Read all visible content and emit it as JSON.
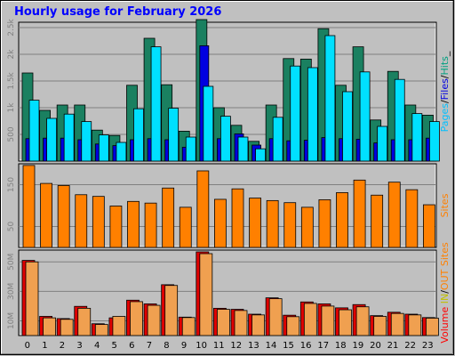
{
  "title": "Hourly usage for February 2026",
  "chart_data": [
    {
      "type": "bar",
      "panel": "hits-files-pages",
      "categories": [
        "0",
        "1",
        "2",
        "3",
        "4",
        "5",
        "6",
        "7",
        "8",
        "9",
        "10",
        "11",
        "12",
        "13",
        "14",
        "15",
        "16",
        "17",
        "18",
        "19",
        "20",
        "21",
        "22",
        "23"
      ],
      "ylim": [
        0,
        2600
      ],
      "yticks": [
        "500",
        "1k",
        "1.5k",
        "2k",
        "2.5k"
      ],
      "yticks_values": [
        500,
        1000,
        1500,
        2000,
        2500
      ],
      "side_label": [
        "Pages",
        "/",
        "Files",
        "/",
        "Hits",
        "_"
      ],
      "side_label_colors": [
        "#00c0ff",
        "#000000",
        "#0000e0",
        "#000000",
        "#00a080",
        "#000000"
      ],
      "series": [
        {
          "name": "Hits",
          "color": "#1a8060",
          "values": [
            1650,
            950,
            1050,
            1050,
            580,
            480,
            1420,
            2300,
            1430,
            560,
            2650,
            1000,
            670,
            370,
            1050,
            1920,
            1910,
            2480,
            1420,
            2140,
            770,
            1680,
            1050,
            860
          ]
        },
        {
          "name": "Files",
          "color": "#0000e0",
          "values": [
            420,
            430,
            430,
            400,
            320,
            290,
            400,
            420,
            400,
            260,
            2160,
            420,
            510,
            300,
            420,
            380,
            390,
            440,
            420,
            410,
            340,
            400,
            400,
            430
          ]
        },
        {
          "name": "Pages",
          "color": "#00e0ff",
          "values": [
            1140,
            800,
            880,
            740,
            490,
            350,
            980,
            2140,
            990,
            450,
            1400,
            840,
            450,
            230,
            820,
            1780,
            1750,
            2350,
            1300,
            1670,
            650,
            1530,
            890,
            740
          ]
        }
      ]
    },
    {
      "type": "bar",
      "panel": "sites",
      "categories": [
        "0",
        "1",
        "2",
        "3",
        "4",
        "5",
        "6",
        "7",
        "8",
        "9",
        "10",
        "11",
        "12",
        "13",
        "14",
        "15",
        "16",
        "17",
        "18",
        "19",
        "20",
        "21",
        "22",
        "23"
      ],
      "ylim": [
        0,
        200
      ],
      "yticks": [
        "50",
        "150"
      ],
      "yticks_values": [
        50,
        150
      ],
      "side_label": [
        "Sites"
      ],
      "side_label_colors": [
        "#ff8000"
      ],
      "series": [
        {
          "name": "Sites",
          "color": "#ff8000",
          "values": [
            196,
            153,
            148,
            126,
            122,
            99,
            110,
            106,
            142,
            96,
            183,
            115,
            140,
            118,
            112,
            107,
            96,
            114,
            131,
            161,
            125,
            156,
            138,
            102
          ]
        }
      ]
    },
    {
      "type": "bar",
      "panel": "volume",
      "categories": [
        "0",
        "1",
        "2",
        "3",
        "4",
        "5",
        "6",
        "7",
        "8",
        "9",
        "10",
        "11",
        "12",
        "13",
        "14",
        "15",
        "16",
        "17",
        "18",
        "19",
        "20",
        "21",
        "22",
        "23"
      ],
      "ylim": [
        0,
        58000
      ],
      "yticks": [
        "10M",
        "30M",
        "50M"
      ],
      "yticks_values": [
        10000,
        30000,
        50000
      ],
      "side_label": [
        "Volume",
        " ",
        "IN",
        "/",
        "OUT",
        " ",
        "Sites"
      ],
      "side_label_colors": [
        "#ff0000",
        "#000000",
        "#c0c000",
        "#000000",
        "#ff8000",
        "#000000",
        "#ff8000"
      ],
      "series": [
        {
          "name": "IN",
          "color": "#e00000",
          "values": [
            51000,
            13000,
            11500,
            19800,
            8000,
            12000,
            24000,
            21500,
            34500,
            12500,
            60000,
            18500,
            17800,
            14500,
            25600,
            13800,
            22800,
            21500,
            18800,
            21000,
            13500,
            15800,
            14500,
            12200
          ]
        },
        {
          "name": "OUT",
          "color": "#f0a050",
          "values": [
            50000,
            12000,
            11000,
            18500,
            7500,
            13000,
            23000,
            20500,
            34000,
            12200,
            59000,
            17800,
            17000,
            14000,
            25000,
            12800,
            21800,
            20000,
            17500,
            19500,
            13000,
            15000,
            14000,
            11800
          ]
        }
      ]
    }
  ]
}
